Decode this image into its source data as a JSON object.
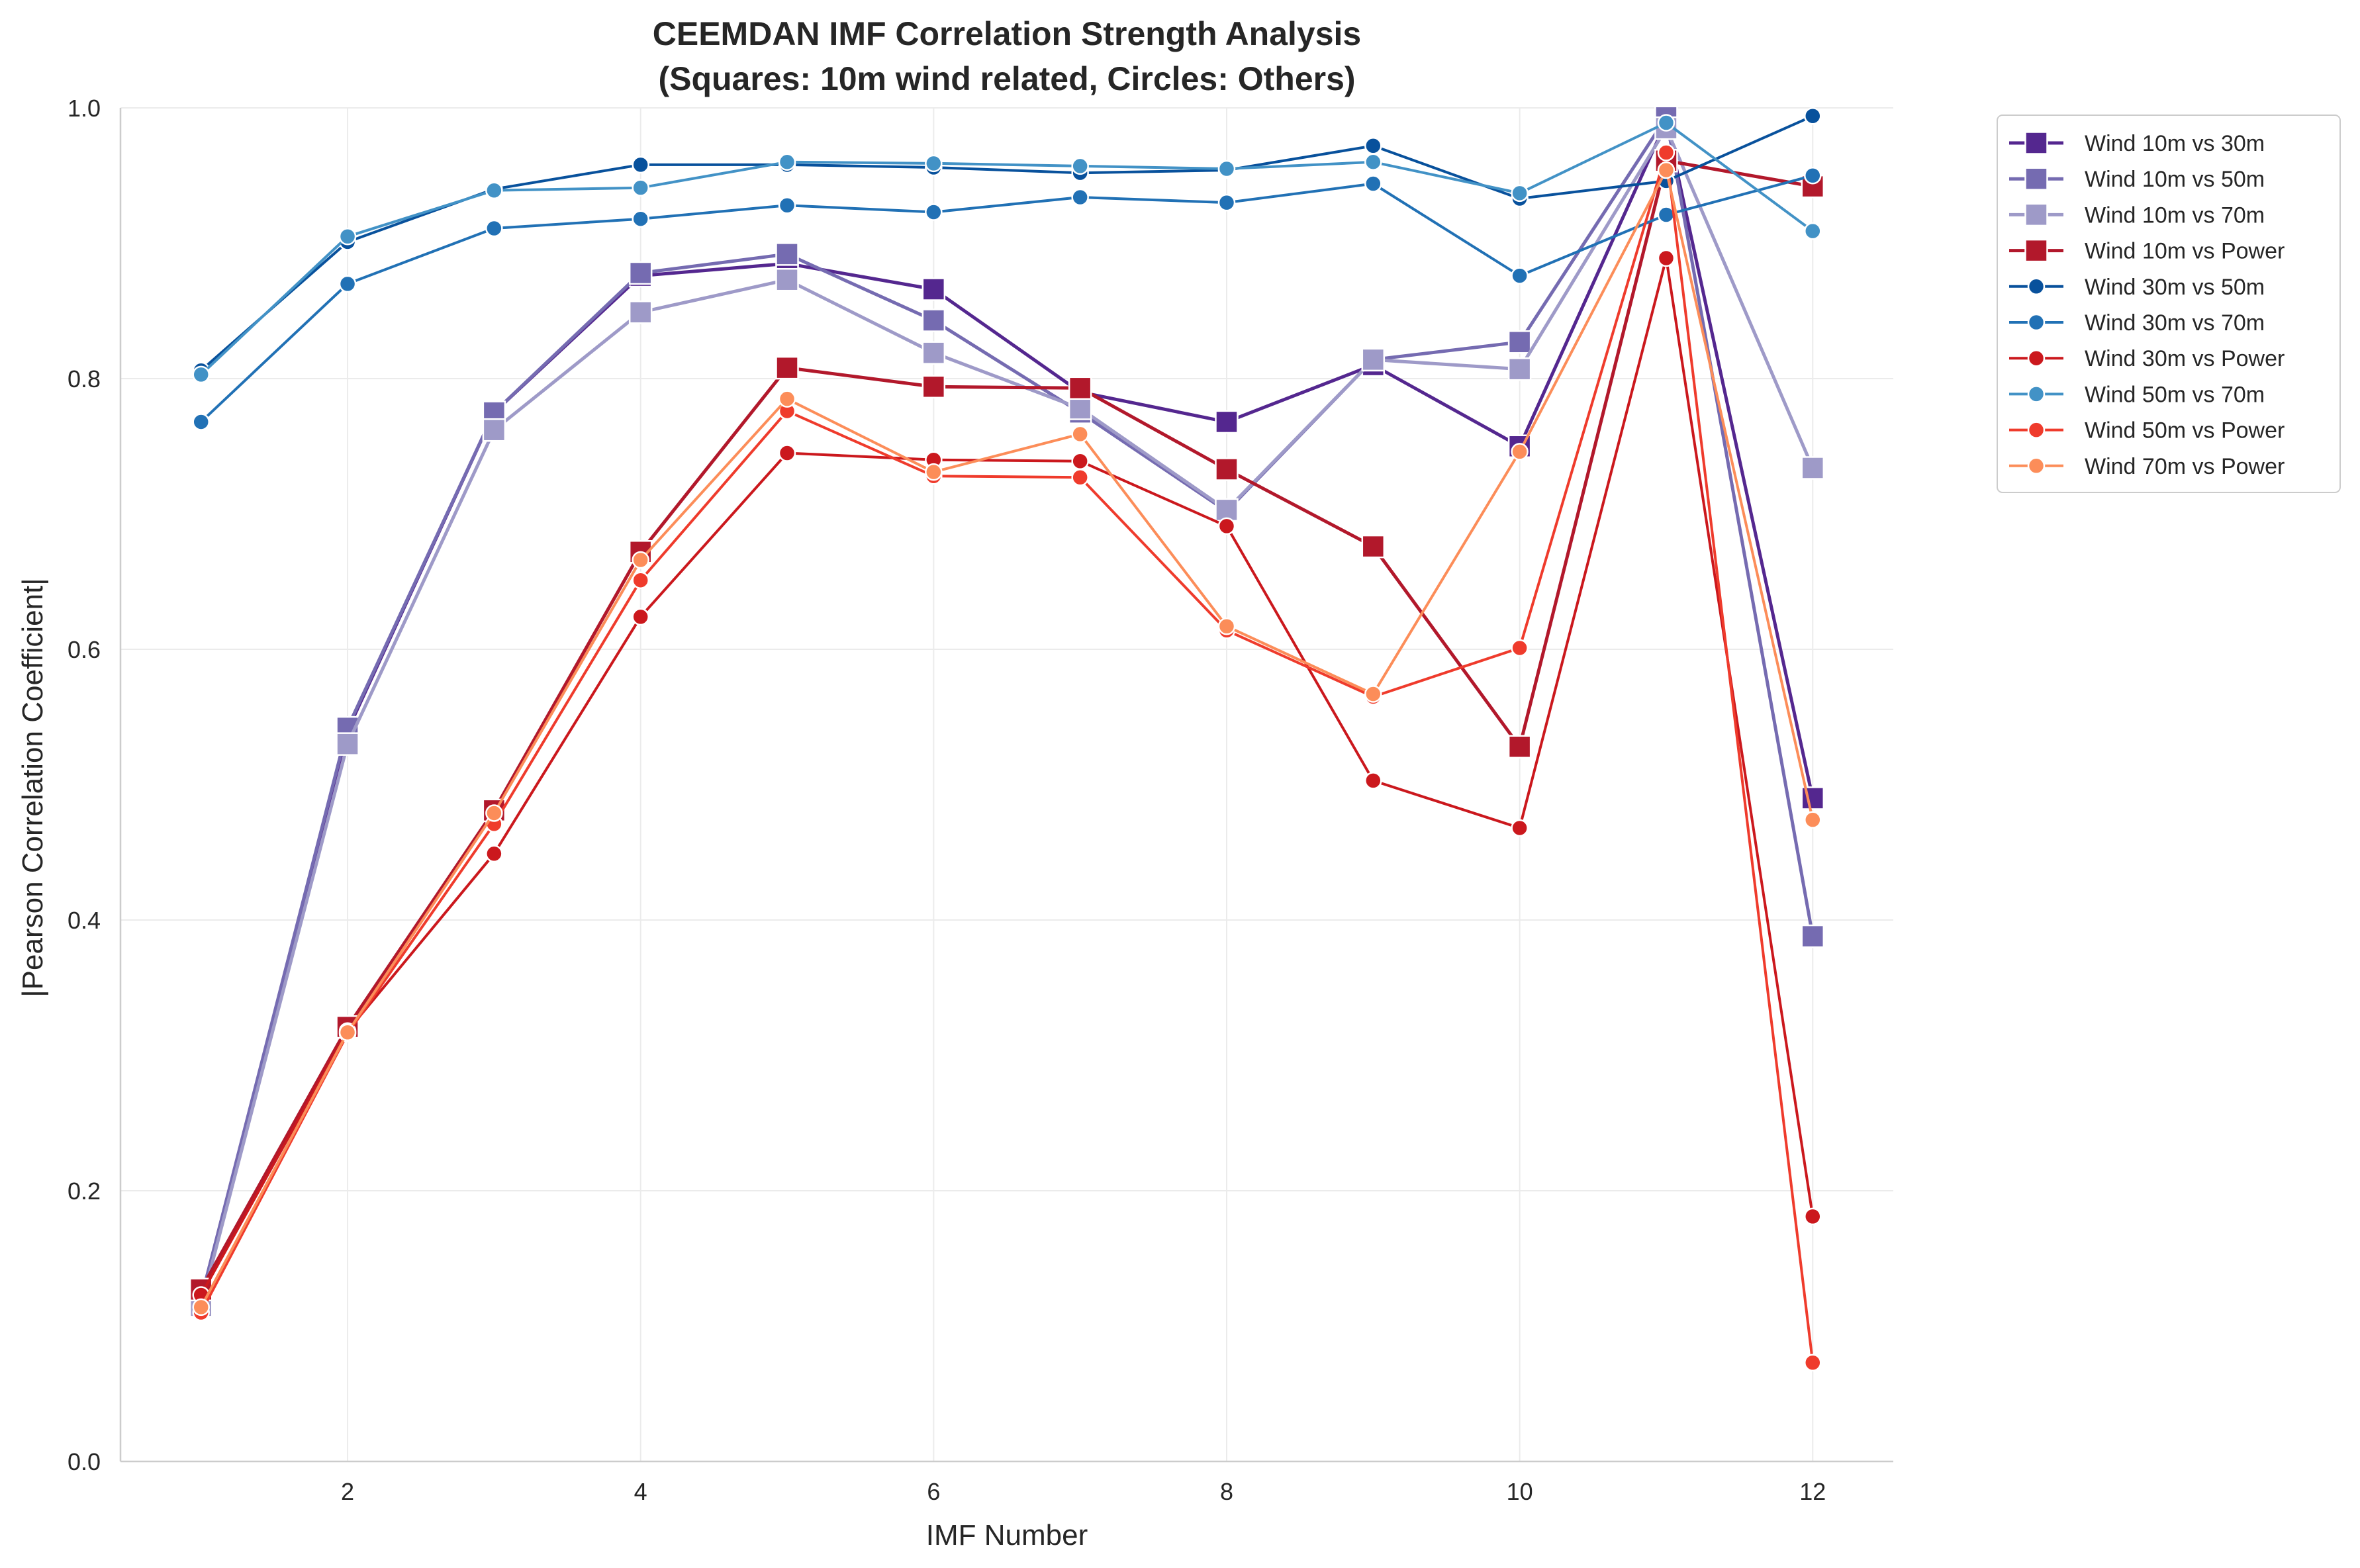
{
  "chart_data": {
    "type": "line",
    "title": "CEEMDAN IMF Correlation Strength Analysis",
    "subtitle": "(Squares: 10m wind related, Circles: Others)",
    "xlabel": "IMF Number",
    "ylabel": "|Pearson Correlation Coefficient|",
    "xlim": [
      0.45,
      12.55
    ],
    "ylim": [
      0.0,
      1.0
    ],
    "x_ticks": [
      2,
      4,
      6,
      8,
      10,
      12
    ],
    "y_ticks": [
      0.0,
      0.2,
      0.4,
      0.6,
      0.8,
      1.0
    ],
    "y_tick_labels": [
      "0.0",
      "0.2",
      "0.4",
      "0.6",
      "0.8",
      "1.0"
    ],
    "grid": true,
    "legend_position": "outside top-right",
    "x": [
      1,
      2,
      3,
      4,
      5,
      6,
      7,
      8,
      9,
      10,
      11,
      12
    ],
    "series": [
      {
        "name": "Wind 10m vs 30m",
        "marker": "square",
        "color": "#54278f",
        "values": [
          0.12,
          0.54,
          0.775,
          0.876,
          0.885,
          0.866,
          0.79,
          0.768,
          0.81,
          0.75,
          0.99,
          0.49
        ]
      },
      {
        "name": "Wind 10m vs 50m",
        "marker": "square",
        "color": "#756bb1",
        "values": [
          0.12,
          0.542,
          0.775,
          0.878,
          0.892,
          0.843,
          0.775,
          0.702,
          0.814,
          0.827,
          0.993,
          0.388
        ]
      },
      {
        "name": "Wind 10m vs 70m",
        "marker": "square",
        "color": "#9e9ac8",
        "values": [
          0.115,
          0.53,
          0.762,
          0.849,
          0.873,
          0.819,
          0.778,
          0.703,
          0.814,
          0.807,
          0.985,
          0.734
        ]
      },
      {
        "name": "Wind 10m vs Power",
        "marker": "square",
        "color": "#b2182b",
        "values": [
          0.127,
          0.321,
          0.481,
          0.672,
          0.808,
          0.794,
          0.793,
          0.733,
          0.676,
          0.528,
          0.961,
          0.942
        ]
      },
      {
        "name": "Wind 30m vs 50m",
        "marker": "circle",
        "color": "#08519c",
        "values": [
          0.806,
          0.901,
          0.94,
          0.958,
          0.958,
          0.956,
          0.952,
          0.954,
          0.972,
          0.933,
          0.946,
          0.994
        ]
      },
      {
        "name": "Wind 30m vs 70m",
        "marker": "circle",
        "color": "#2171b5",
        "values": [
          0.768,
          0.87,
          0.911,
          0.918,
          0.928,
          0.923,
          0.934,
          0.93,
          0.944,
          0.876,
          0.921,
          0.95
        ]
      },
      {
        "name": "Wind 30m vs Power",
        "marker": "circle",
        "color": "#cb181d",
        "values": [
          0.123,
          0.318,
          0.449,
          0.624,
          0.745,
          0.74,
          0.739,
          0.691,
          0.503,
          0.468,
          0.889,
          0.181
        ]
      },
      {
        "name": "Wind 50m vs 70m",
        "marker": "circle",
        "color": "#4292c6",
        "values": [
          0.803,
          0.905,
          0.939,
          0.941,
          0.96,
          0.959,
          0.957,
          0.955,
          0.96,
          0.937,
          0.989,
          0.909
        ]
      },
      {
        "name": "Wind 50m vs Power",
        "marker": "circle",
        "color": "#ef3b2c",
        "values": [
          0.11,
          0.316,
          0.471,
          0.651,
          0.776,
          0.728,
          0.727,
          0.614,
          0.565,
          0.601,
          0.967,
          0.073
        ]
      },
      {
        "name": "Wind 70m vs Power",
        "marker": "circle",
        "color": "#fc8d59",
        "values": [
          0.114,
          0.317,
          0.479,
          0.666,
          0.785,
          0.731,
          0.759,
          0.617,
          0.567,
          0.746,
          0.954,
          0.474
        ]
      }
    ]
  }
}
